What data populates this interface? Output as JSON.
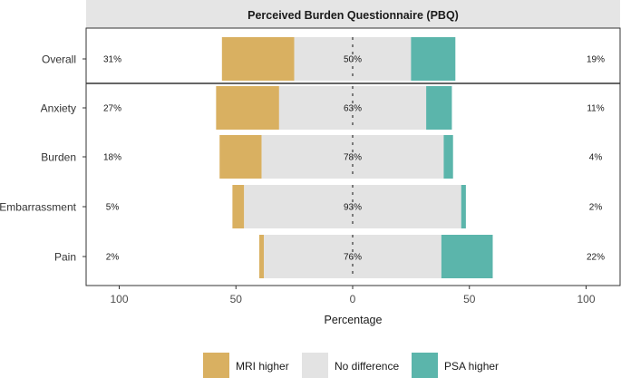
{
  "chart_data": {
    "type": "bar",
    "title": "Perceived Burden Questionnaire (PBQ)",
    "xlabel": "Percentage",
    "xlim": [
      -100,
      100
    ],
    "x_ticks": [
      -100,
      -50,
      0,
      50,
      100
    ],
    "x_tick_labels": [
      "100",
      "50",
      "0",
      "50",
      "100"
    ],
    "categories": [
      "Overall",
      "Anxiety",
      "Burden",
      "Embarrassment",
      "Pain"
    ],
    "series": [
      {
        "name": "MRI higher",
        "values": [
          31,
          27,
          18,
          5,
          2
        ],
        "labels": [
          "31%",
          "27%",
          "18%",
          "5%",
          "2%"
        ],
        "color": "#D9B061"
      },
      {
        "name": "No difference",
        "values": [
          50,
          63,
          78,
          93,
          76
        ],
        "labels": [
          "50%",
          "63%",
          "78%",
          "93%",
          "76%"
        ],
        "color": "#E3E3E3"
      },
      {
        "name": "PSA higher",
        "values": [
          19,
          11,
          4,
          2,
          22
        ],
        "labels": [
          "19%",
          "11%",
          "4%",
          "2%",
          "22%"
        ],
        "color": "#5BB5AB"
      }
    ],
    "legend": {
      "position": "bottom",
      "entries": [
        "MRI higher",
        "No difference",
        "PSA higher"
      ]
    },
    "grid": false
  }
}
